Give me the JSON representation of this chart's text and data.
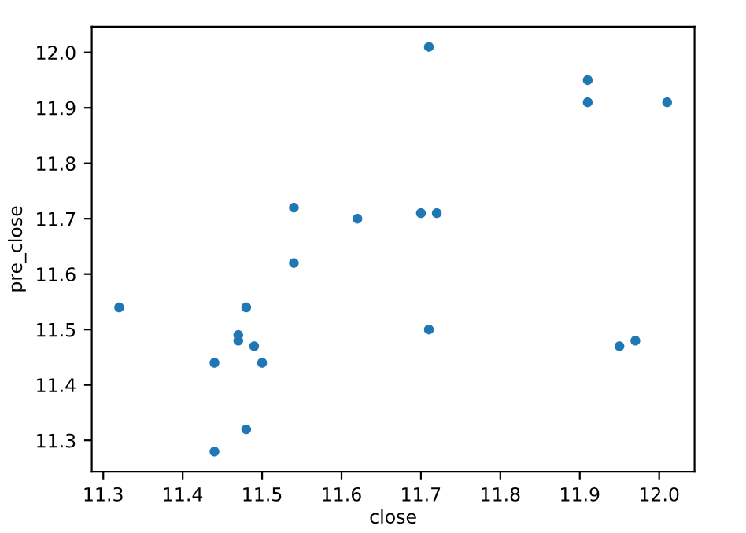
{
  "chart_data": {
    "type": "scatter",
    "xlabel": "close",
    "ylabel": "pre_close",
    "x": [
      11.32,
      11.44,
      11.44,
      11.47,
      11.47,
      11.48,
      11.48,
      11.49,
      11.5,
      11.54,
      11.54,
      11.62,
      11.7,
      11.72,
      11.71,
      11.71,
      11.91,
      11.91,
      12.01,
      11.95,
      11.97
    ],
    "series": [
      {
        "color": "#1f77b4",
        "values": [
          11.54,
          11.44,
          11.28,
          11.49,
          11.48,
          11.54,
          11.32,
          11.47,
          11.44,
          11.72,
          11.62,
          11.7,
          11.71,
          11.71,
          12.01,
          11.5,
          11.95,
          11.91,
          11.91,
          11.47,
          11.48
        ]
      }
    ],
    "xlim": [
      11.2855,
      12.0445
    ],
    "ylim": [
      11.2435,
      12.0465
    ],
    "xticks": [
      {
        "value": 11.3,
        "label": "11.3"
      },
      {
        "value": 11.4,
        "label": "11.4"
      },
      {
        "value": 11.5,
        "label": "11.5"
      },
      {
        "value": 11.6,
        "label": "11.6"
      },
      {
        "value": 11.7,
        "label": "11.7"
      },
      {
        "value": 11.8,
        "label": "11.8"
      },
      {
        "value": 11.9,
        "label": "11.9"
      },
      {
        "value": 12.0,
        "label": "12.0"
      }
    ],
    "yticks": [
      {
        "value": 11.3,
        "label": "11.3"
      },
      {
        "value": 11.4,
        "label": "11.4"
      },
      {
        "value": 11.5,
        "label": "11.5"
      },
      {
        "value": 11.6,
        "label": "11.6"
      },
      {
        "value": 11.7,
        "label": "11.7"
      },
      {
        "value": 11.8,
        "label": "11.8"
      },
      {
        "value": 11.9,
        "label": "11.9"
      },
      {
        "value": 12.0,
        "label": "12.0"
      }
    ],
    "marker": "circle"
  }
}
